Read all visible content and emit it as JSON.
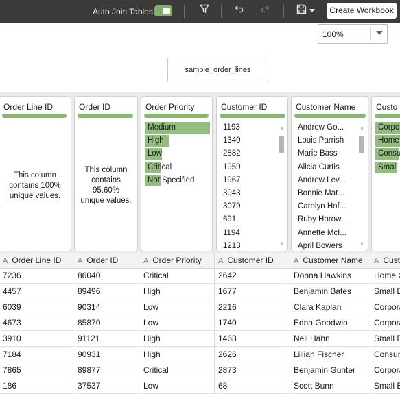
{
  "toolbar": {
    "auto_join_label": "Auto Join Tables",
    "create_workbook_label": "Create Workbook",
    "icons": [
      "filter-icon",
      "undo-icon",
      "redo-icon",
      "save-icon",
      "caret-down-icon"
    ]
  },
  "zoom": {
    "value": "100%"
  },
  "source": {
    "name": "sample_order_lines"
  },
  "profile": {
    "cards": [
      {
        "title": "Order Line ID",
        "message": "This column contains 100% unique values."
      },
      {
        "title": "Order ID",
        "message": "This column contains 95.60% unique values."
      },
      {
        "title": "Order Priority",
        "values": [
          "Medium",
          "High",
          "Low",
          "Critical",
          "Not Specified"
        ],
        "fractions": [
          1.0,
          0.38,
          0.26,
          0.24,
          0.24
        ]
      },
      {
        "title": "Customer ID",
        "values": [
          "1193",
          "1340",
          "2882",
          "1959",
          "1967",
          "3043",
          "3079",
          "691",
          "1194",
          "1213"
        ]
      },
      {
        "title": "Customer Name",
        "values": [
          "Andrew Go...",
          "Louis Parrish",
          "Marie Bass",
          "Alicia Curtis",
          "Andrew Lev...",
          "Bonnie Mat...",
          "Carolyn Hof...",
          "Ruby Horow...",
          "Annette McI...",
          "April Bowers"
        ]
      },
      {
        "title": "Custo",
        "values": [
          "Corpo",
          "Home",
          "Consu",
          "Small"
        ],
        "fractions": [
          1.0,
          0.85,
          0.8,
          0.75
        ]
      }
    ]
  },
  "grid": {
    "columns": [
      "Order Line ID",
      "Order ID",
      "Order Priority",
      "Customer ID",
      "Customer Name",
      "Cust"
    ],
    "type_marker": "A",
    "rows": [
      [
        "7236",
        "86040",
        "Critical",
        "2642",
        "Donna Hawkins",
        "Home O"
      ],
      [
        "4457",
        "89496",
        "High",
        "1677",
        "Benjamin Bates",
        "Small B"
      ],
      [
        "6039",
        "90314",
        "Low",
        "2216",
        "Clara Kaplan",
        "Corpora"
      ],
      [
        "4673",
        "85870",
        "Low",
        "1740",
        "Edna Goodwin",
        "Corpora"
      ],
      [
        "3910",
        "91121",
        "High",
        "1468",
        "Neil Hahn",
        "Small B"
      ],
      [
        "7184",
        "90931",
        "High",
        "2626",
        "Lillian Fischer",
        "Consum"
      ],
      [
        "7865",
        "89877",
        "Critical",
        "2873",
        "Benjamin Gunter",
        "Corpora"
      ],
      [
        "186",
        "37537",
        "Low",
        "68",
        "Scott Bunn",
        "Small B"
      ]
    ]
  }
}
